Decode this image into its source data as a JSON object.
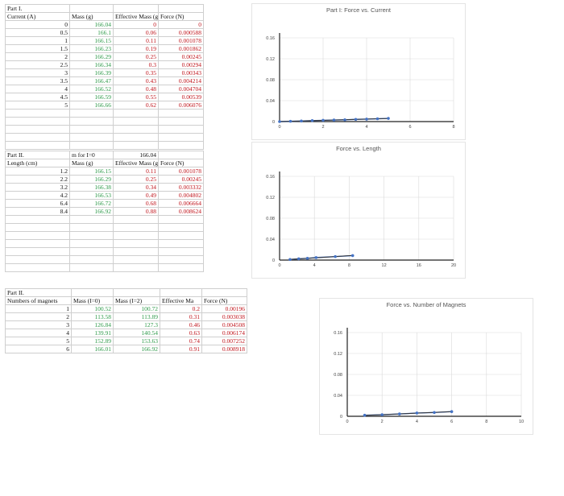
{
  "table1": {
    "section": "Part I.",
    "headers": [
      "Current (A)",
      "Mass (g)",
      "Effective Mass (g",
      "Force (N)"
    ],
    "rows": [
      [
        "0",
        "166.04",
        "0",
        "0"
      ],
      [
        "0.5",
        "166.1",
        "0.06",
        "0.000588"
      ],
      [
        "1",
        "166.15",
        "0.11",
        "0.001078"
      ],
      [
        "1.5",
        "166.23",
        "0.19",
        "0.001862"
      ],
      [
        "2",
        "166.29",
        "0.25",
        "0.00245"
      ],
      [
        "2.5",
        "166.34",
        "0.3",
        "0.00294"
      ],
      [
        "3",
        "166.39",
        "0.35",
        "0.00343"
      ],
      [
        "3.5",
        "166.47",
        "0.43",
        "0.004214"
      ],
      [
        "4",
        "166.52",
        "0.48",
        "0.004704"
      ],
      [
        "4.5",
        "166.59",
        "0.55",
        "0.00539"
      ],
      [
        "5",
        "166.66",
        "0.62",
        "0.006076"
      ]
    ]
  },
  "table2": {
    "section": "Part II.",
    "m_label": "m for I=0",
    "m_value": "166.04",
    "headers": [
      "Length (cm)",
      "Mass (g)",
      "Effective Mass (g",
      "Force (N)"
    ],
    "rows": [
      [
        "1.2",
        "166.15",
        "0.11",
        "0.001078"
      ],
      [
        "2.2",
        "166.29",
        "0.25",
        "0.00245"
      ],
      [
        "3.2",
        "166.38",
        "0.34",
        "0.003332"
      ],
      [
        "4.2",
        "166.53",
        "0.49",
        "0.004802"
      ],
      [
        "6.4",
        "166.72",
        "0.68",
        "0.006664"
      ],
      [
        "8.4",
        "166.92",
        "0.88",
        "0.008624"
      ]
    ]
  },
  "table3": {
    "section": "Part II.",
    "headers": [
      "Numbers of magnets",
      "Mass (I=0)",
      "Mass (I=2)",
      "Effective Ma",
      "Force (N)"
    ],
    "rows": [
      [
        "1",
        "100.52",
        "100.72",
        "0.2",
        "0.00196"
      ],
      [
        "2",
        "113.58",
        "113.89",
        "0.31",
        "0.003038"
      ],
      [
        "3",
        "126.84",
        "127.3",
        "0.46",
        "0.004508"
      ],
      [
        "4",
        "139.91",
        "140.54",
        "0.63",
        "0.006174"
      ],
      [
        "5",
        "152.89",
        "153.63",
        "0.74",
        "0.007252"
      ],
      [
        "6",
        "166.01",
        "166.92",
        "0.91",
        "0.008918"
      ]
    ]
  },
  "colors": {
    "series": "#4472c4",
    "trend": "#333333",
    "green_text": "#2e9a4a",
    "red_text": "#c0141b"
  },
  "chart_data": [
    {
      "type": "scatter",
      "title": "Part I: Force vs. Current",
      "xlabel": "",
      "ylabel": "",
      "xlim": [
        0,
        8
      ],
      "ylim": [
        0,
        0.16
      ],
      "xticks": [
        "0",
        "2",
        "4",
        "6",
        "8"
      ],
      "yticks": [
        "0",
        "0.04",
        "0.08",
        "0.12",
        "0.16"
      ],
      "x": [
        0,
        0.5,
        1,
        1.5,
        2,
        2.5,
        3,
        3.5,
        4,
        4.5,
        5
      ],
      "y": [
        0,
        0.000588,
        0.001078,
        0.001862,
        0.00245,
        0.00294,
        0.00343,
        0.004214,
        0.004704,
        0.00539,
        0.006076
      ],
      "trendline": true,
      "grid": true
    },
    {
      "type": "scatter",
      "title": "Force vs. Length",
      "xlabel": "",
      "ylabel": "",
      "xlim": [
        0,
        20
      ],
      "ylim": [
        0,
        0.16
      ],
      "xticks": [
        "0",
        "4",
        "8",
        "12",
        "16",
        "20"
      ],
      "yticks": [
        "0",
        "0.04",
        "0.08",
        "0.12",
        "0.16"
      ],
      "x": [
        1.2,
        2.2,
        3.2,
        4.2,
        6.4,
        8.4
      ],
      "y": [
        0.001078,
        0.00245,
        0.003332,
        0.004802,
        0.006664,
        0.008624
      ],
      "trendline": true,
      "grid": true
    },
    {
      "type": "scatter",
      "title": "Force vs. Number of Magnets",
      "xlabel": "",
      "ylabel": "",
      "xlim": [
        0,
        10
      ],
      "ylim": [
        0,
        0.16
      ],
      "xticks": [
        "0",
        "2",
        "4",
        "6",
        "8",
        "10"
      ],
      "yticks": [
        "0",
        "0.04",
        "0.08",
        "0.12",
        "0.16"
      ],
      "x": [
        1,
        2,
        3,
        4,
        5,
        6
      ],
      "y": [
        0.00196,
        0.003038,
        0.004508,
        0.006174,
        0.007252,
        0.008918
      ],
      "trendline": true,
      "grid": true
    }
  ]
}
